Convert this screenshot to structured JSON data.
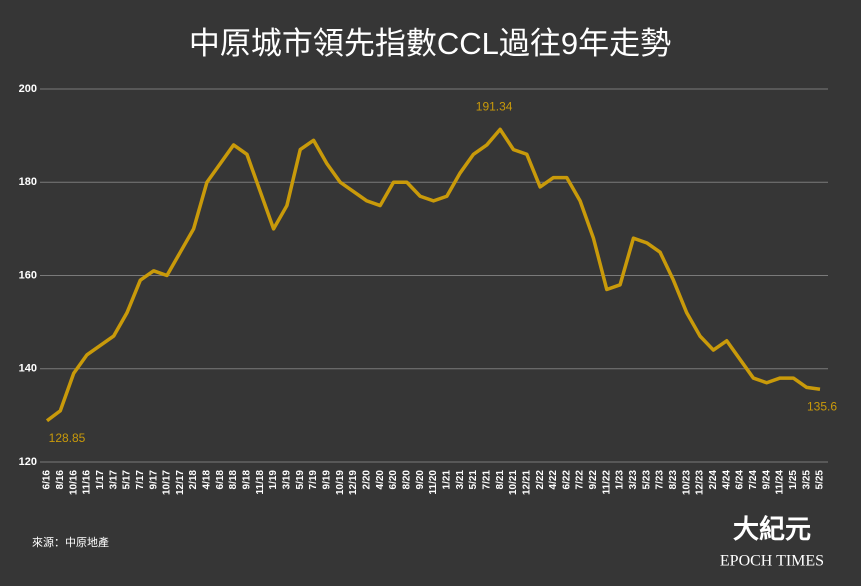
{
  "chart_data": {
    "type": "line",
    "title": "中原城市領先指數CCL過往9年走勢",
    "source": "來源：中原地產",
    "logo": {
      "name": "大紀元",
      "subtitle": "EPOCH TIMES"
    },
    "categories": [
      "6/16",
      "8/16",
      "10/16",
      "11/16",
      "1/17",
      "3/17",
      "5/17",
      "7/17",
      "9/17",
      "10/17",
      "12/17",
      "2/18",
      "4/18",
      "6/18",
      "8/18",
      "9/18",
      "11/18",
      "1/19",
      "3/19",
      "5/19",
      "7/19",
      "9/19",
      "10/19",
      "12/19",
      "2/20",
      "4/20",
      "6/20",
      "8/20",
      "9/20",
      "11/20",
      "1/21",
      "3/21",
      "5/21",
      "7/21",
      "8/21",
      "10/21",
      "12/21",
      "2/22",
      "4/22",
      "6/22",
      "7/22",
      "9/22",
      "11/22",
      "1/23",
      "3/23",
      "5/23",
      "7/23",
      "8/23",
      "10/23",
      "12/23",
      "2/24",
      "4/24",
      "6/24",
      "7/24",
      "9/24",
      "11/24",
      "1/25",
      "3/25",
      "5/25"
    ],
    "series": [
      {
        "name": "CCL",
        "color": "#c99a0a",
        "values": [
          128.85,
          131,
          139,
          143,
          145,
          147,
          152,
          159,
          161,
          160,
          165,
          170,
          180,
          184,
          188,
          186,
          178,
          170,
          175,
          187,
          189,
          184,
          180,
          178,
          176,
          175,
          180,
          180,
          177,
          176,
          177,
          182,
          186,
          188,
          191.34,
          187,
          186,
          179,
          181,
          181,
          176,
          168,
          157,
          158,
          168,
          167,
          165,
          159,
          152,
          147,
          144,
          146,
          142,
          138,
          137,
          138,
          138,
          136,
          135.6
        ]
      }
    ],
    "data_labels": [
      0,
      34,
      58
    ],
    "ylim": [
      120,
      200
    ],
    "yticks": [
      120,
      140,
      160,
      180,
      200
    ],
    "grid": true
  }
}
